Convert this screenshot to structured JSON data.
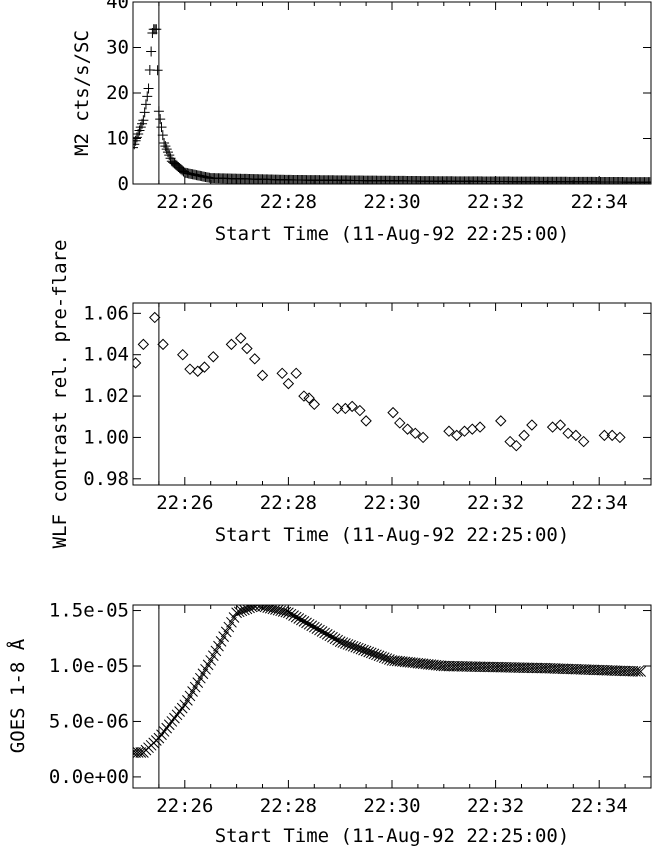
{
  "figure": {
    "flare_marker_time": "22:25:30"
  },
  "chart_data": [
    {
      "type": "scatter",
      "marker": "plus",
      "xlabel": "Start Time (11-Aug-92 22:25:00)",
      "ylabel": "M2 cts/s/SC",
      "x_unit": "minutes after 22:25:00",
      "xlim": [
        0,
        10
      ],
      "ylim": [
        0,
        40
      ],
      "x_ticks": [
        1,
        3,
        5,
        7,
        9
      ],
      "x_tick_labels": [
        "22:26",
        "22:28",
        "22:30",
        "22:32",
        "22:34"
      ],
      "y_ticks": [
        0,
        10,
        20,
        30,
        40
      ],
      "y_tick_labels": [
        "0",
        "10",
        "20",
        "30",
        "40"
      ],
      "profile": [
        [
          0,
          8
        ],
        [
          0.1,
          11
        ],
        [
          0.2,
          14
        ],
        [
          0.3,
          21
        ],
        [
          0.38,
          34
        ],
        [
          0.45,
          34
        ],
        [
          0.5,
          16
        ],
        [
          0.6,
          9
        ],
        [
          0.75,
          5
        ],
        [
          1.0,
          2.5
        ],
        [
          1.5,
          1.3
        ],
        [
          3,
          0.9
        ],
        [
          6,
          0.6
        ],
        [
          10,
          0.4
        ]
      ],
      "sample_step": 0.025
    },
    {
      "type": "scatter",
      "marker": "diamond",
      "xlabel": "Start Time (11-Aug-92 22:25:00)",
      "ylabel": "WLF contrast rel. pre-flare",
      "x_unit": "minutes after 22:25:00",
      "xlim": [
        0,
        10
      ],
      "ylim": [
        0.977,
        1.065
      ],
      "x_ticks": [
        1,
        3,
        5,
        7,
        9
      ],
      "x_tick_labels": [
        "22:26",
        "22:28",
        "22:30",
        "22:32",
        "22:34"
      ],
      "y_ticks": [
        0.98,
        1.0,
        1.02,
        1.04,
        1.06
      ],
      "y_tick_labels": [
        "0.98",
        "1.00",
        "1.02",
        "1.04",
        "1.06"
      ],
      "points": [
        [
          0.05,
          1.036
        ],
        [
          0.2,
          1.045
        ],
        [
          0.42,
          1.058
        ],
        [
          0.58,
          1.045
        ],
        [
          0.96,
          1.04
        ],
        [
          1.1,
          1.033
        ],
        [
          1.25,
          1.032
        ],
        [
          1.38,
          1.034
        ],
        [
          1.55,
          1.039
        ],
        [
          1.9,
          1.045
        ],
        [
          2.08,
          1.048
        ],
        [
          2.2,
          1.043
        ],
        [
          2.35,
          1.038
        ],
        [
          2.5,
          1.03
        ],
        [
          2.88,
          1.031
        ],
        [
          3.0,
          1.026
        ],
        [
          3.15,
          1.031
        ],
        [
          3.3,
          1.02
        ],
        [
          3.4,
          1.019
        ],
        [
          3.5,
          1.016
        ],
        [
          3.95,
          1.014
        ],
        [
          4.1,
          1.014
        ],
        [
          4.23,
          1.015
        ],
        [
          4.38,
          1.013
        ],
        [
          4.5,
          1.008
        ],
        [
          5.02,
          1.012
        ],
        [
          5.15,
          1.007
        ],
        [
          5.3,
          1.004
        ],
        [
          5.45,
          1.002
        ],
        [
          5.6,
          1.0
        ],
        [
          6.1,
          1.003
        ],
        [
          6.25,
          1.001
        ],
        [
          6.4,
          1.003
        ],
        [
          6.55,
          1.004
        ],
        [
          6.7,
          1.005
        ],
        [
          7.1,
          1.008
        ],
        [
          7.28,
          0.998
        ],
        [
          7.4,
          0.996
        ],
        [
          7.55,
          1.001
        ],
        [
          7.7,
          1.006
        ],
        [
          8.1,
          1.005
        ],
        [
          8.25,
          1.006
        ],
        [
          8.4,
          1.002
        ],
        [
          8.55,
          1.001
        ],
        [
          8.7,
          0.998
        ],
        [
          9.1,
          1.001
        ],
        [
          9.25,
          1.001
        ],
        [
          9.4,
          1.0
        ]
      ]
    },
    {
      "type": "scatter",
      "marker": "cross",
      "xlabel": "Start Time (11-Aug-92 22:25:00)",
      "ylabel": "GOES 1-8 Å",
      "x_unit": "minutes after 22:25:00",
      "xlim": [
        0,
        10
      ],
      "ylim": [
        -1e-06,
        1.55e-05
      ],
      "x_ticks": [
        1,
        3,
        5,
        7,
        9
      ],
      "x_tick_labels": [
        "22:26",
        "22:28",
        "22:30",
        "22:32",
        "22:34"
      ],
      "y_ticks": [
        0,
        5e-06,
        1e-05,
        1.5e-05
      ],
      "y_tick_labels": [
        "0.0e+00",
        "5.0e-06",
        "1.0e-05",
        "1.5e-05"
      ],
      "profile": [
        [
          0,
          2.2e-06
        ],
        [
          0.2,
          2.2e-06
        ],
        [
          0.5,
          3.5e-06
        ],
        [
          1.0,
          6.5e-06
        ],
        [
          1.5,
          1.05e-05
        ],
        [
          2.0,
          1.48e-05
        ],
        [
          2.4,
          1.55e-05
        ],
        [
          3.0,
          1.48e-05
        ],
        [
          4.0,
          1.22e-05
        ],
        [
          5.0,
          1.05e-05
        ],
        [
          6.0,
          1e-05
        ],
        [
          8.0,
          9.8e-06
        ],
        [
          9.8,
          9.5e-06
        ]
      ],
      "sample_step": 0.05
    }
  ]
}
